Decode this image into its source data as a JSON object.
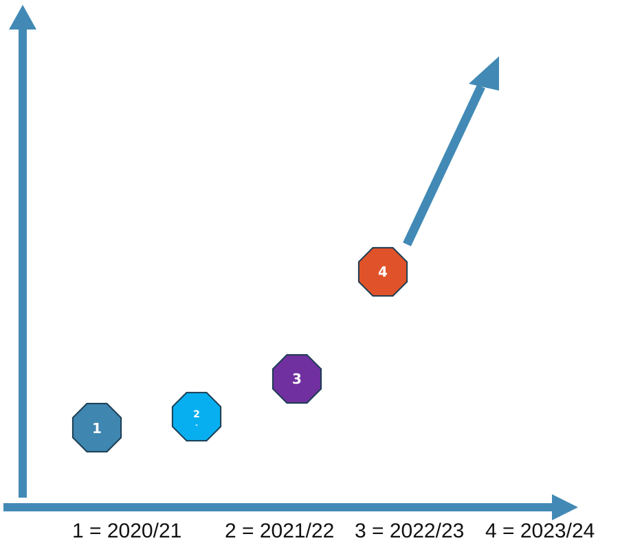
{
  "colors": {
    "axis": "#428ab5",
    "outline": "#1c3d52",
    "node_1": "#3f86b0",
    "node_2": "#08aff0",
    "node_3": "#7030a0",
    "node_4": "#e0532a"
  },
  "nodes": [
    {
      "label": "1",
      "sublabel": ""
    },
    {
      "label": "2",
      "sublabel": "-"
    },
    {
      "label": "3",
      "sublabel": ""
    },
    {
      "label": "4",
      "sublabel": ""
    }
  ],
  "legend": [
    {
      "text": "1 = 2020/21"
    },
    {
      "text": "2 = 2021/22"
    },
    {
      "text": "3 = 2022/23"
    },
    {
      "text": "4 = 2023/24"
    }
  ]
}
